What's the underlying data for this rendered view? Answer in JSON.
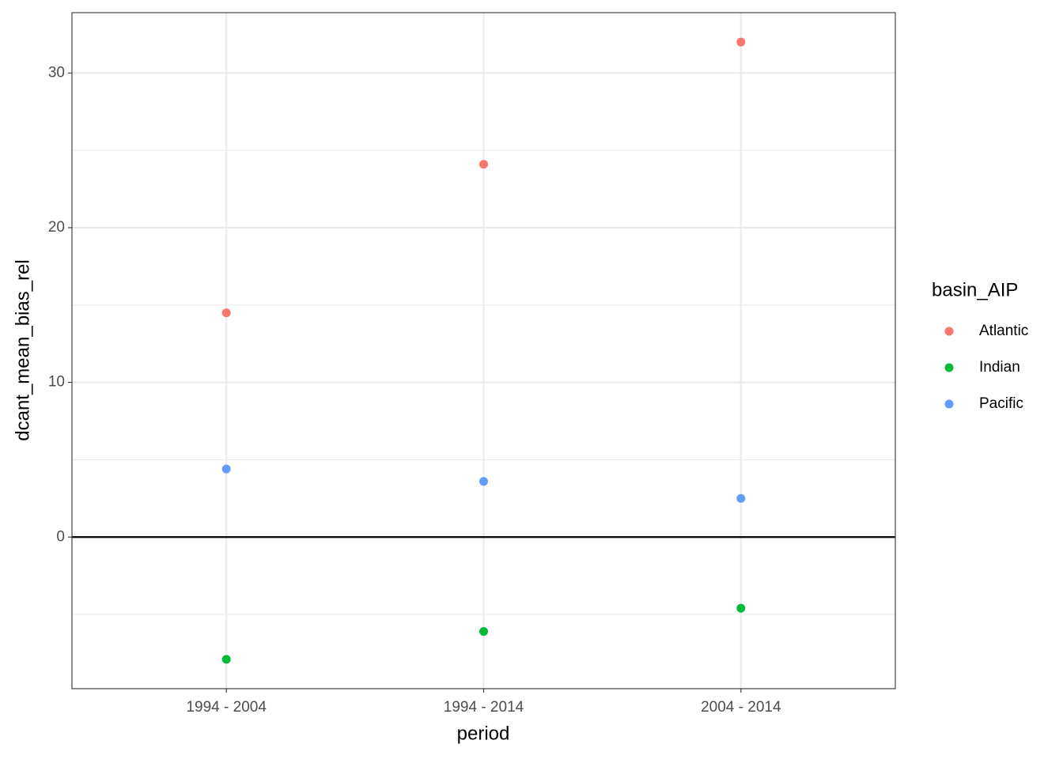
{
  "chart_data": {
    "type": "scatter",
    "x_label": "period",
    "y_label": "dcant_mean_bias_rel",
    "categories": [
      "1994 - 2004",
      "1994 - 2014",
      "2004 - 2014"
    ],
    "series": [
      {
        "name": "Atlantic",
        "color": "#F8766D",
        "values": [
          14.5,
          24.1,
          32.0
        ]
      },
      {
        "name": "Indian",
        "color": "#00BA38",
        "values": [
          -7.9,
          -6.1,
          -4.6
        ]
      },
      {
        "name": "Pacific",
        "color": "#619CFF",
        "values": [
          4.4,
          3.6,
          2.5
        ]
      }
    ],
    "ylim": [
      -9.8,
      33.9
    ],
    "yticks": [
      0,
      10,
      20,
      30
    ],
    "minor_yticks": [
      -5,
      5,
      15,
      25
    ],
    "reference_line": 0,
    "grid": true,
    "legend_title": "basin_AIP",
    "legend_position": "right"
  }
}
